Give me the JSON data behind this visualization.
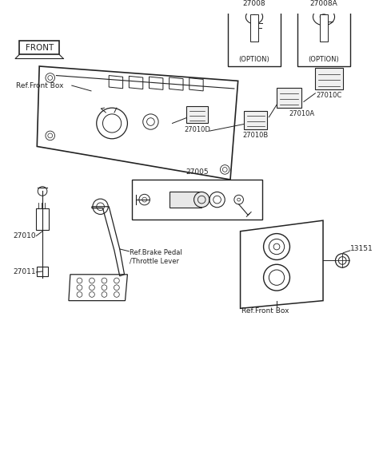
{
  "background_color": "#ffffff",
  "fig_width": 4.74,
  "fig_height": 5.9,
  "dpi": 100,
  "labels": {
    "front_box_label": "FRONT",
    "ref_front_box_top": "Ref.Front Box",
    "part_27008": "27008",
    "part_27008A": "27008A",
    "option1": "(OPTION)",
    "option2": "(OPTION)",
    "part_27010C": "27010C",
    "part_27010A": "27010A",
    "part_27010B": "27010B",
    "part_27010D": "27010D",
    "part_27005": "27005",
    "part_27010": "27010",
    "part_27011": "27011",
    "ref_brake": "Ref.Brake Pedal\n/Throttle Lever",
    "part_13151": "13151",
    "ref_front_box_bottom": "Ref.Front Box"
  },
  "line_color": "#222222",
  "text_color": "#222222"
}
